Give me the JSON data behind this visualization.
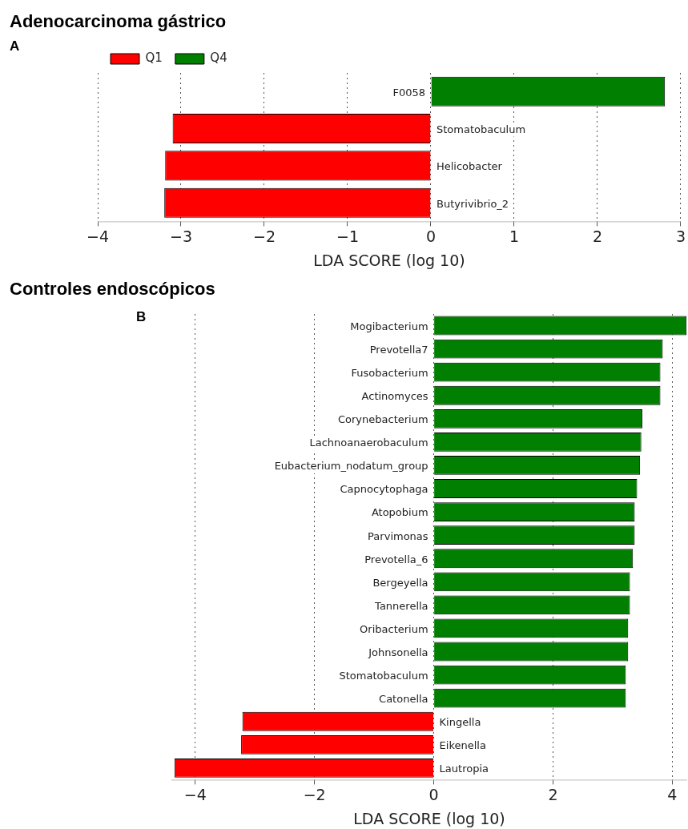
{
  "chart_data": [
    {
      "type": "bar",
      "orientation": "horizontal",
      "title": "Adenocarcinoma gástrico",
      "subtitle": "A",
      "xlabel": "LDA SCORE (log 10)",
      "categories": [
        "F0058",
        "Stomatobaculum",
        "Helicobacter",
        "Butyrivibrio_2"
      ],
      "series": [
        {
          "name": "Q1",
          "color": "#ff0000",
          "values": [
            null,
            -3.1,
            -3.19,
            -3.2
          ]
        },
        {
          "name": "Q4",
          "color": "#007f00",
          "values": [
            2.81,
            null,
            null,
            null
          ]
        }
      ],
      "xlim": [
        -4,
        3
      ],
      "xticks": [
        {
          "value": -4,
          "label": "−4"
        },
        {
          "value": -3,
          "label": "−3"
        },
        {
          "value": -2,
          "label": "−2"
        },
        {
          "value": -1,
          "label": "−1"
        },
        0,
        1,
        2,
        3
      ],
      "grid": "x",
      "legend": "top left"
    },
    {
      "type": "bar",
      "orientation": "horizontal",
      "title": "Controles endoscópicos",
      "subtitle": "B",
      "xlabel": "LDA SCORE (log 10)",
      "categories": [
        "Mogibacterium",
        "Prevotella7",
        "Fusobacterium",
        "Actinomyces",
        "Corynebacterium",
        "Lachnoanaerobaculum",
        "Eubacterium_nodatum_group",
        "Capnocytophaga",
        "Atopobium",
        "Parvimonas",
        "Prevotella_6",
        "Bergeyella",
        "Tannerella",
        "Oribacterium",
        "Johnsonella",
        "Stomatobaculum",
        "Catonella",
        "Kingella",
        "Eikenella",
        "Lautropia"
      ],
      "values": [
        4.24,
        3.84,
        3.8,
        3.8,
        3.5,
        3.48,
        3.46,
        3.41,
        3.37,
        3.37,
        3.34,
        3.29,
        3.29,
        3.26,
        3.26,
        3.22,
        3.22,
        -3.21,
        -3.23,
        -4.35
      ],
      "colors": [
        "#007f00",
        "#007f00",
        "#007f00",
        "#007f00",
        "#007f00",
        "#007f00",
        "#007f00",
        "#007f00",
        "#007f00",
        "#007f00",
        "#007f00",
        "#007f00",
        "#007f00",
        "#007f00",
        "#007f00",
        "#007f00",
        "#007f00",
        "#ff0000",
        "#ff0000",
        "#ff0000"
      ],
      "xlim": [
        -4.4,
        4.25
      ],
      "xticks": [
        {
          "value": -4,
          "label": "−4"
        },
        {
          "value": -2,
          "label": "−2"
        },
        0,
        2,
        4
      ],
      "grid": "x"
    }
  ]
}
